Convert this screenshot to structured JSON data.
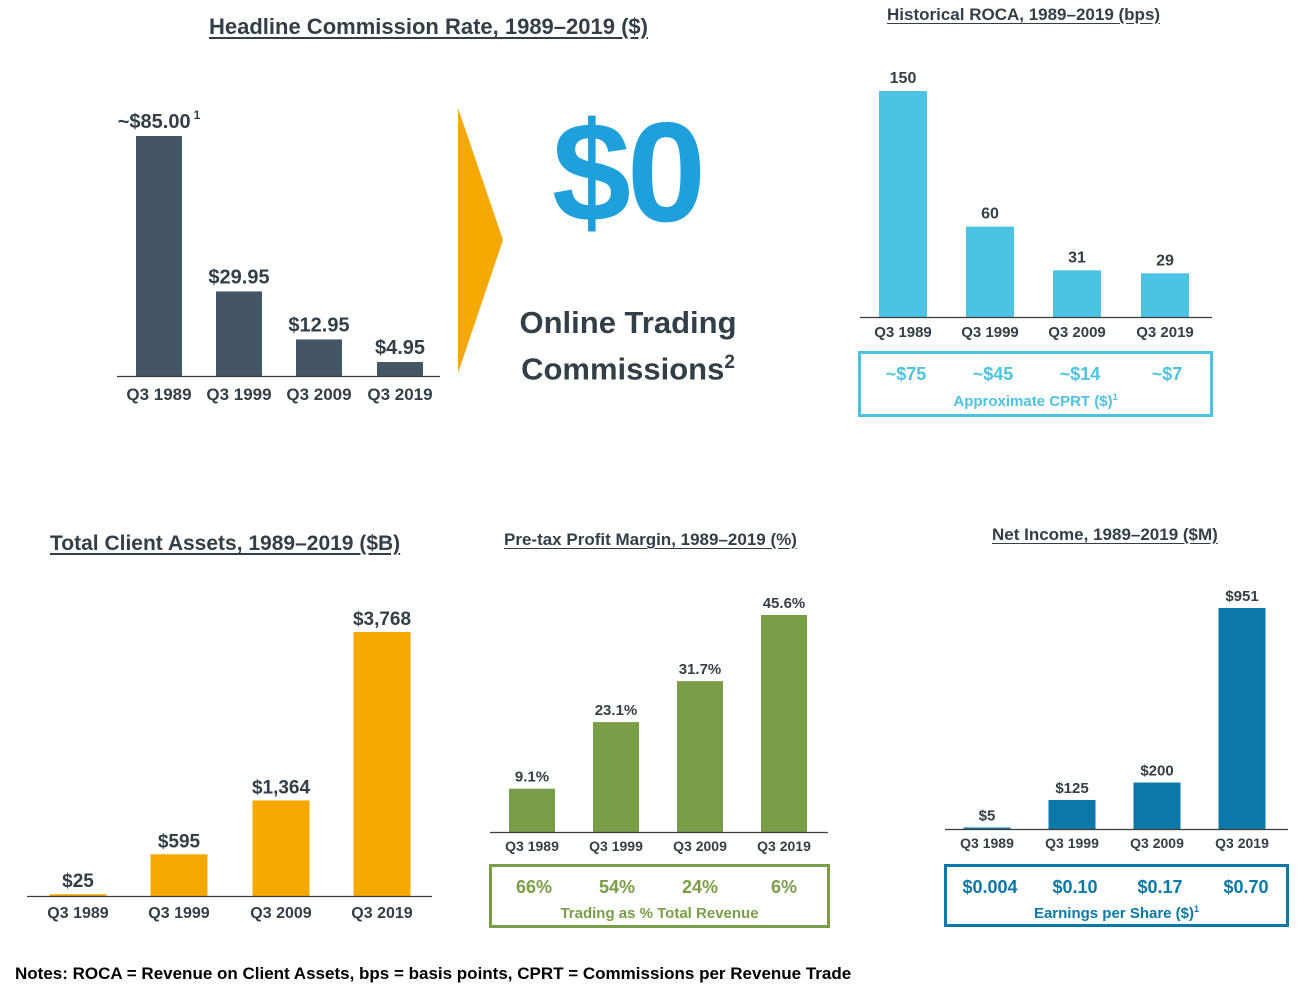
{
  "chart_data": [
    {
      "id": "commission",
      "type": "bar",
      "title": "Headline Commission Rate, 1989–2019 ($)",
      "categories": [
        "Q3 1989",
        "Q3 1999",
        "Q3 2009",
        "Q3 2019"
      ],
      "values": [
        85.0,
        29.95,
        12.95,
        4.95
      ],
      "value_labels": [
        "~$85.00",
        "$29.95",
        "$12.95",
        "$4.95"
      ],
      "first_label_footnote": "1",
      "color": "#445565"
    },
    {
      "id": "roca",
      "type": "bar",
      "title": "Historical ROCA, 1989–2019 (bps)",
      "categories": [
        "Q3 1989",
        "Q3 1999",
        "Q3 2009",
        "Q3 2019"
      ],
      "values": [
        150,
        60,
        31,
        29
      ],
      "value_labels": [
        "150",
        "60",
        "31",
        "29"
      ],
      "color": "#4dc3e3",
      "box": {
        "values": [
          "~$75",
          "~$45",
          "~$14",
          "~$7"
        ],
        "caption": "Approximate CPRT ($)",
        "caption_footnote": "1",
        "color": "#4dc3e3"
      }
    },
    {
      "id": "client_assets",
      "type": "bar",
      "title": "Total Client Assets, 1989–2019 ($B)",
      "categories": [
        "Q3 1989",
        "Q3 1999",
        "Q3 2009",
        "Q3 2019"
      ],
      "values": [
        25,
        595,
        1364,
        3768
      ],
      "value_labels": [
        "$25",
        "$595",
        "$1,364",
        "$3,768"
      ],
      "color": "#f5a800"
    },
    {
      "id": "margin",
      "type": "bar",
      "title": "Pre-tax Profit Margin, 1989–2019 (%)",
      "categories": [
        "Q3 1989",
        "Q3 1999",
        "Q3 2009",
        "Q3 2019"
      ],
      "values": [
        9.1,
        23.1,
        31.7,
        45.6
      ],
      "value_labels": [
        "9.1%",
        "23.1%",
        "31.7%",
        "45.6%"
      ],
      "color": "#7a9e48",
      "box": {
        "values": [
          "66%",
          "54%",
          "24%",
          "6%"
        ],
        "caption": "Trading as % Total Revenue",
        "color": "#7a9e48"
      }
    },
    {
      "id": "net_income",
      "type": "bar",
      "title": "Net Income, 1989–2019 ($M)",
      "categories": [
        "Q3 1989",
        "Q3 1999",
        "Q3 2009",
        "Q3 2019"
      ],
      "values": [
        5,
        125,
        200,
        951
      ],
      "value_labels": [
        "$5",
        "$125",
        "$200",
        "$951"
      ],
      "color": "#0a78a8",
      "box": {
        "values": [
          "$0.004",
          "$0.10",
          "$0.17",
          "$0.70"
        ],
        "caption": "Earnings per Share ($)",
        "caption_footnote": "1",
        "color": "#0a78a8"
      }
    }
  ],
  "center": {
    "big_value": "$0",
    "label_line1": "Online Trading",
    "label_line2": "Commissions",
    "label_footnote": "2",
    "arrow_color": "#f5a800",
    "big_value_color": "#1fa0dc"
  },
  "notes": "Notes: ROCA = Revenue on Client Assets, bps = basis points, CPRT = Commissions per Revenue Trade"
}
